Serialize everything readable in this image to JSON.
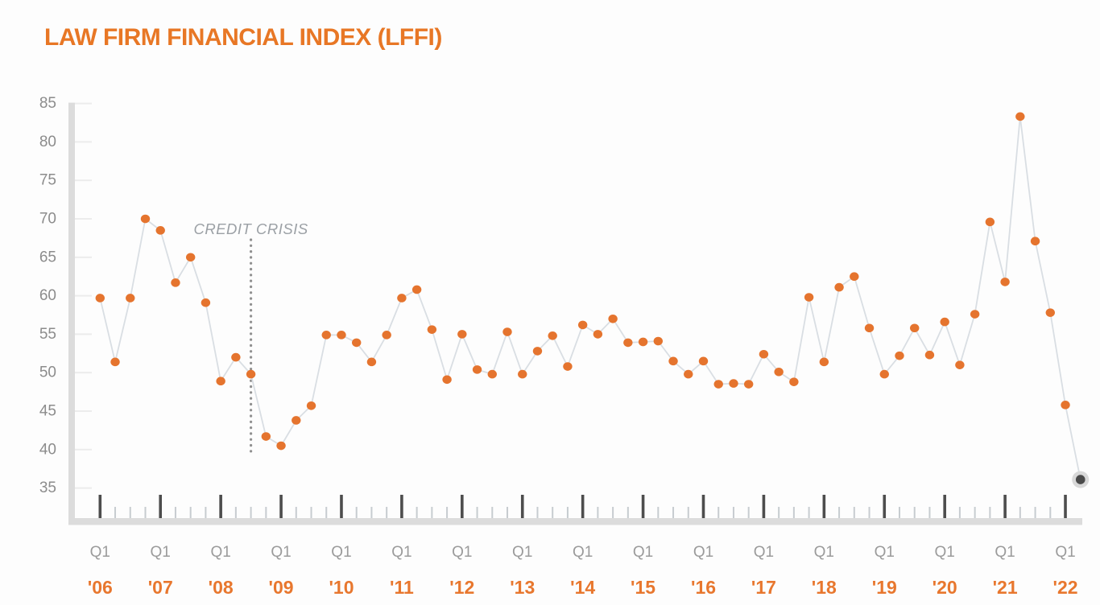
{
  "page": {
    "title": "LAW FIRM FINANCIAL INDEX (LFFI)"
  },
  "colors": {
    "title_orange": "#E87725",
    "point_orange": "#E5742E",
    "year_label_orange": "#E8772E",
    "series_line_gray": "#D9DEE3",
    "axis_bar_gray": "#DCDCDC",
    "y_stub_gray": "#ECECEC",
    "major_tick_gray": "#4D4D4D",
    "minor_tick_gray": "#C7CCD0",
    "axis_label_gray": "#8C8C8C",
    "quarter_label_gray": "#9B9B9B",
    "annotation_gray": "#9BA0A5",
    "dotted_line_gray": "#909090",
    "dark_point_fill": "#4A4A4A",
    "dark_point_halo": "#D8D8D8"
  },
  "chart_data": {
    "type": "line",
    "title": "LAW FIRM FINANCIAL INDEX (LFFI)",
    "ylim": [
      35,
      85
    ],
    "y_ticks": [
      85,
      80,
      75,
      70,
      65,
      60,
      55,
      50,
      45,
      40,
      35
    ],
    "grid": "tick-stubs-only",
    "legend": "none",
    "x_axis": {
      "quarter_label": "Q1",
      "years": [
        "'06",
        "'07",
        "'08",
        "'09",
        "'10",
        "'11",
        "'12",
        "'13",
        "'14",
        "'15",
        "'16",
        "'17",
        "'18",
        "'19",
        "'20",
        "'21",
        "'22"
      ],
      "minor_ticks": "quarterly"
    },
    "categories": [
      "Q1 '06",
      "Q2 '06",
      "Q3 '06",
      "Q4 '06",
      "Q1 '07",
      "Q2 '07",
      "Q3 '07",
      "Q4 '07",
      "Q1 '08",
      "Q2 '08",
      "Q3 '08",
      "Q4 '08",
      "Q1 '09",
      "Q2 '09",
      "Q3 '09",
      "Q4 '09",
      "Q1 '10",
      "Q2 '10",
      "Q3 '10",
      "Q4 '10",
      "Q1 '11",
      "Q2 '11",
      "Q3 '11",
      "Q4 '11",
      "Q1 '12",
      "Q2 '12",
      "Q3 '12",
      "Q4 '12",
      "Q1 '13",
      "Q2 '13",
      "Q3 '13",
      "Q4 '13",
      "Q1 '14",
      "Q2 '14",
      "Q3 '14",
      "Q4 '14",
      "Q1 '15",
      "Q2 '15",
      "Q3 '15",
      "Q4 '15",
      "Q1 '16",
      "Q2 '16",
      "Q3 '16",
      "Q4 '16",
      "Q1 '17",
      "Q2 '17",
      "Q3 '17",
      "Q4 '17",
      "Q1 '18",
      "Q2 '18",
      "Q3 '18",
      "Q4 '18",
      "Q1 '19",
      "Q2 '19",
      "Q3 '19",
      "Q4 '19",
      "Q1 '20",
      "Q2 '20",
      "Q3 '20",
      "Q4 '20",
      "Q1 '21",
      "Q2 '21",
      "Q3 '21",
      "Q4 '21",
      "Q1 '22",
      "Q2 '22"
    ],
    "values": [
      59.7,
      51.4,
      59.7,
      70.0,
      68.5,
      61.7,
      65.0,
      59.1,
      48.9,
      52.0,
      49.8,
      41.7,
      40.5,
      43.8,
      45.7,
      54.9,
      54.9,
      53.9,
      51.4,
      54.9,
      59.7,
      60.8,
      55.6,
      49.1,
      55.0,
      50.4,
      49.8,
      55.3,
      49.8,
      52.8,
      54.8,
      50.8,
      56.2,
      55.0,
      57.0,
      53.9,
      54.0,
      54.1,
      51.5,
      49.8,
      51.5,
      48.5,
      48.6,
      48.5,
      52.4,
      50.1,
      48.8,
      59.8,
      51.4,
      61.1,
      62.5,
      55.8,
      49.8,
      52.2,
      55.8,
      52.3,
      56.6,
      51.0,
      57.6,
      69.6,
      61.8,
      83.3,
      67.1,
      57.8,
      45.8,
      36.1
    ],
    "latest_point": {
      "category": "Q2 '22",
      "value": 36.1,
      "style": "dark-dot-with-halo"
    },
    "annotations": [
      {
        "label": "CREDIT CRISIS",
        "style": "dotted-vertical-line",
        "x_category": "Q3 '08",
        "x_index": 10
      }
    ]
  }
}
